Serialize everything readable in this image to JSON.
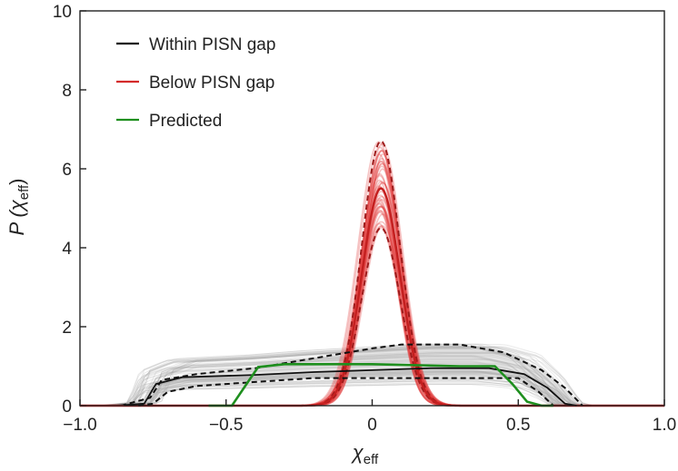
{
  "chart_data": {
    "type": "line",
    "title": "",
    "xlabel": "χ",
    "xlabel_sub": "eff",
    "ylabel_prefix": "P (χ",
    "ylabel_sub": "eff",
    "ylabel_suffix": ")",
    "xlim": [
      -1.0,
      1.0
    ],
    "ylim": [
      0,
      10
    ],
    "xticks": [
      -1.0,
      -0.5,
      0,
      0.5,
      1.0
    ],
    "xtick_labels": [
      "−1.0",
      "−0.5",
      "0",
      "0.5",
      "1.0"
    ],
    "yticks": [
      0,
      2,
      4,
      6,
      8,
      10
    ],
    "ytick_labels": [
      "0",
      "2",
      "4",
      "6",
      "8",
      "10"
    ],
    "grid": false,
    "legend_position": "top-left",
    "legend": [
      {
        "label": "Within PISN gap",
        "color": "#111111"
      },
      {
        "label": "Below PISN gap",
        "color": "#d42a2a"
      },
      {
        "label": "Predicted",
        "color": "#1e8f1e"
      }
    ],
    "series": [
      {
        "name": "Within PISN gap",
        "color": "#111111",
        "median": [
          [
            -0.88,
            0.0
          ],
          [
            -0.78,
            0.05
          ],
          [
            -0.74,
            0.55
          ],
          [
            -0.65,
            0.72
          ],
          [
            -0.4,
            0.78
          ],
          [
            -0.2,
            0.85
          ],
          [
            0.0,
            0.9
          ],
          [
            0.2,
            0.95
          ],
          [
            0.4,
            0.95
          ],
          [
            0.52,
            0.8
          ],
          [
            0.6,
            0.45
          ],
          [
            0.66,
            0.05
          ],
          [
            0.7,
            0.0
          ]
        ],
        "upper": [
          [
            -0.86,
            0.0
          ],
          [
            -0.76,
            0.2
          ],
          [
            -0.72,
            0.65
          ],
          [
            -0.6,
            0.8
          ],
          [
            -0.4,
            0.95
          ],
          [
            -0.2,
            1.2
          ],
          [
            0.0,
            1.45
          ],
          [
            0.1,
            1.55
          ],
          [
            0.3,
            1.55
          ],
          [
            0.45,
            1.35
          ],
          [
            0.58,
            0.9
          ],
          [
            0.66,
            0.45
          ],
          [
            0.72,
            0.0
          ]
        ],
        "lower": [
          [
            -0.8,
            0.0
          ],
          [
            -0.75,
            0.05
          ],
          [
            -0.7,
            0.35
          ],
          [
            -0.6,
            0.5
          ],
          [
            -0.4,
            0.6
          ],
          [
            -0.2,
            0.7
          ],
          [
            0.0,
            0.7
          ],
          [
            0.3,
            0.7
          ],
          [
            0.5,
            0.7
          ],
          [
            0.57,
            0.35
          ],
          [
            0.62,
            0.0
          ]
        ]
      },
      {
        "name": "Below PISN gap",
        "color": "#d42a2a",
        "center": 0.03,
        "median_peak": 5.5,
        "upper_peak": 6.7,
        "lower_peak": 4.5,
        "half_width": 0.17
      },
      {
        "name": "Predicted",
        "color": "#1e8f1e",
        "median": [
          [
            -0.56,
            0.0
          ],
          [
            -0.48,
            0.0
          ],
          [
            -0.43,
            0.55
          ],
          [
            -0.39,
            0.98
          ],
          [
            -0.3,
            1.05
          ],
          [
            0.0,
            1.05
          ],
          [
            0.3,
            1.0
          ],
          [
            0.42,
            1.0
          ],
          [
            0.48,
            0.55
          ],
          [
            0.53,
            0.1
          ],
          [
            0.58,
            0.0
          ],
          [
            0.62,
            0.0
          ]
        ]
      }
    ]
  }
}
